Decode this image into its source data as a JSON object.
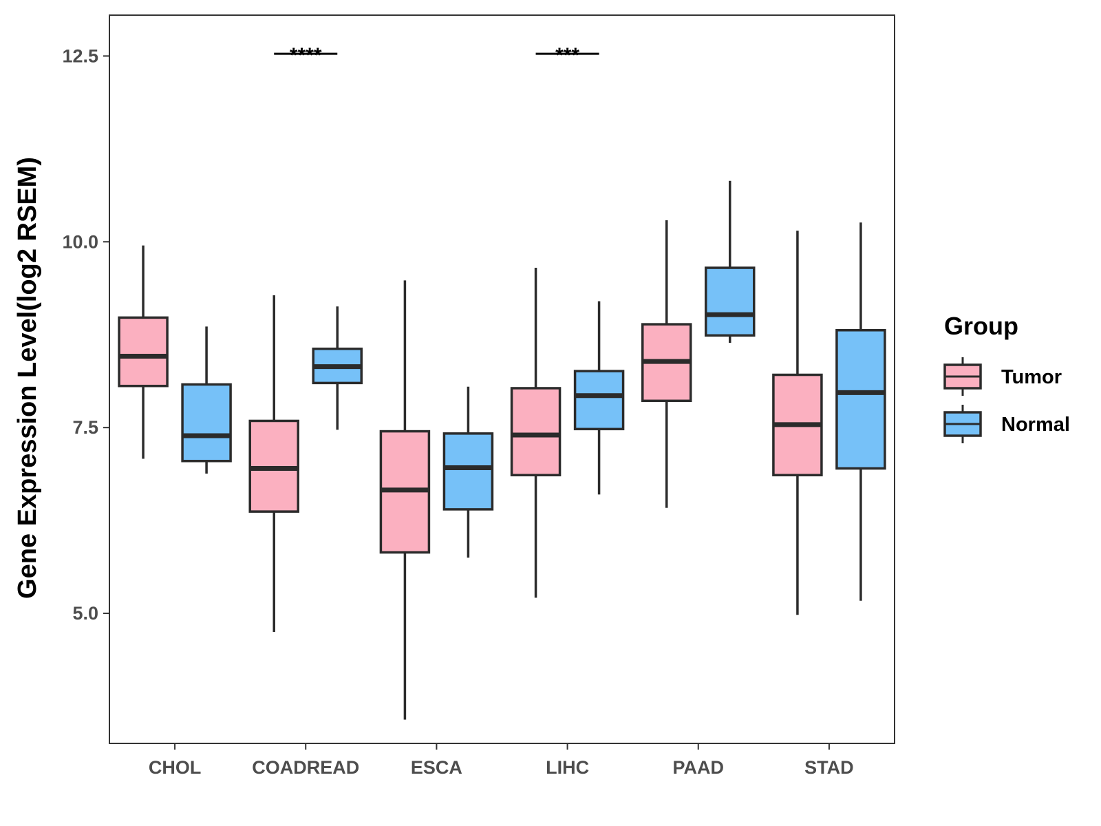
{
  "chart_data": {
    "type": "boxplot",
    "title": "",
    "xlabel": "",
    "ylabel": "Gene Expression Level(log2 RSEM)",
    "ylim": [
      3.25,
      13.05
    ],
    "yticks": [
      5.0,
      7.5,
      10.0,
      12.5
    ],
    "ytick_labels": [
      "5.0",
      "7.5",
      "10.0",
      "12.5"
    ],
    "categories": [
      "CHOL",
      "COADREAD",
      "ESCA",
      "LIHC",
      "PAAD",
      "STAD"
    ],
    "legend": {
      "title": "Group",
      "position": "right",
      "entries": [
        "Tumor",
        "Normal"
      ]
    },
    "series": [
      {
        "name": "Tumor",
        "color": "#fbb0c0",
        "boxes": [
          {
            "min": 7.08,
            "q1": 8.06,
            "median": 8.46,
            "q3": 8.98,
            "max": 9.95
          },
          {
            "min": 4.75,
            "q1": 6.37,
            "median": 6.95,
            "q3": 7.59,
            "max": 9.28
          },
          {
            "min": 3.57,
            "q1": 5.82,
            "median": 6.66,
            "q3": 7.45,
            "max": 9.48
          },
          {
            "min": 5.21,
            "q1": 6.86,
            "median": 7.4,
            "q3": 8.03,
            "max": 9.65
          },
          {
            "min": 6.42,
            "q1": 7.86,
            "median": 8.39,
            "q3": 8.89,
            "max": 10.29
          },
          {
            "min": 4.98,
            "q1": 6.86,
            "median": 7.54,
            "q3": 8.21,
            "max": 10.15
          }
        ]
      },
      {
        "name": "Normal",
        "color": "#76c1f8",
        "boxes": [
          {
            "min": 6.88,
            "q1": 7.05,
            "median": 7.39,
            "q3": 8.08,
            "max": 8.86
          },
          {
            "min": 7.47,
            "q1": 8.1,
            "median": 8.32,
            "q3": 8.56,
            "max": 9.13
          },
          {
            "min": 5.75,
            "q1": 6.4,
            "median": 6.96,
            "q3": 7.42,
            "max": 8.05
          },
          {
            "min": 6.6,
            "q1": 7.48,
            "median": 7.93,
            "q3": 8.26,
            "max": 9.2
          },
          {
            "min": 8.64,
            "q1": 8.74,
            "median": 9.02,
            "q3": 9.65,
            "max": 10.82
          },
          {
            "min": 5.17,
            "q1": 6.95,
            "median": 7.97,
            "q3": 8.81,
            "max": 10.26
          }
        ]
      }
    ],
    "significance": [
      {
        "category": "COADREAD",
        "label": "****",
        "y": 12.53
      },
      {
        "category": "LIHC",
        "label": "***",
        "y": 12.53
      }
    ]
  }
}
